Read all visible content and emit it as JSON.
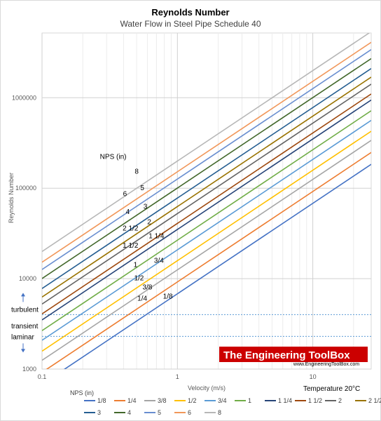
{
  "chart_data": {
    "type": "line",
    "title": "Reynolds Number",
    "subtitle": "Water Flow in Steel Pipe Schedule 40",
    "xlabel": "Velocity (m/s)",
    "ylabel": "Reynolds Number",
    "xscale": "log",
    "yscale": "log",
    "xlim": [
      0.1,
      27
    ],
    "ylim": [
      1000,
      5200000
    ],
    "x_ticks": [
      0.1,
      1,
      10
    ],
    "x_tick_labels": [
      "0.1",
      "1",
      "10"
    ],
    "y_ticks": [
      1000,
      10000,
      100000,
      1000000
    ],
    "y_tick_labels": [
      "1000",
      "10000",
      "100000",
      "1000000"
    ],
    "grid": true,
    "legend_title": "NPS (in)",
    "legend_position": "bottom",
    "label_header": "NPS (in)",
    "temperature_note": "Temperature 20°C",
    "zones": {
      "turbulent": "turbulent",
      "transient": "transient",
      "laminar": "laminar",
      "turbulent_threshold": 4000,
      "laminar_threshold": 2300
    },
    "logo": {
      "title": "The Engineering ToolBox",
      "url": "www.EngineeringToolBox.com",
      "color": "#cc0000"
    },
    "series": [
      {
        "name": "1/8",
        "color": "#4472c4",
        "x": [
          0.1,
          27
        ],
        "y": [
          680,
          183600
        ],
        "label_x": 0.85,
        "label_y": 6000
      },
      {
        "name": "1/4",
        "color": "#ed7d31",
        "x": [
          0.1,
          27
        ],
        "y": [
          920,
          248400
        ],
        "label_x": 0.55,
        "label_y": 5700
      },
      {
        "name": "3/8",
        "color": "#a5a5a5",
        "x": [
          0.1,
          27
        ],
        "y": [
          1250,
          337500
        ],
        "label_x": 0.6,
        "label_y": 7600
      },
      {
        "name": "1/2",
        "color": "#ffc000",
        "x": [
          0.1,
          27
        ],
        "y": [
          1580,
          426600
        ],
        "label_x": 0.52,
        "label_y": 9600
      },
      {
        "name": "3/4",
        "color": "#5b9bd5",
        "x": [
          0.1,
          27
        ],
        "y": [
          2080,
          561600
        ],
        "label_x": 0.73,
        "label_y": 15000
      },
      {
        "name": "1",
        "color": "#70ad47",
        "x": [
          0.1,
          27
        ],
        "y": [
          2660,
          718200
        ],
        "label_x": 0.49,
        "label_y": 13500
      },
      {
        "name": "1 1/4",
        "color": "#264478",
        "x": [
          0.1,
          27
        ],
        "y": [
          3500,
          945000
        ],
        "label_x": 0.7,
        "label_y": 28000
      },
      {
        "name": "1 1/2",
        "color": "#9e480e",
        "x": [
          0.1,
          27
        ],
        "y": [
          4080,
          1101600
        ],
        "label_x": 0.45,
        "label_y": 22000
      },
      {
        "name": "2",
        "color": "#636363",
        "x": [
          0.1,
          27
        ],
        "y": [
          5240,
          1414800
        ],
        "label_x": 0.62,
        "label_y": 40000
      },
      {
        "name": "2 1/2",
        "color": "#997300",
        "x": [
          0.1,
          27
        ],
        "y": [
          6260,
          1690200
        ],
        "label_x": 0.45,
        "label_y": 34000
      },
      {
        "name": "3",
        "color": "#255e91",
        "x": [
          0.1,
          27
        ],
        "y": [
          7780,
          2100600
        ],
        "label_x": 0.58,
        "label_y": 59000
      },
      {
        "name": "4",
        "color": "#43682b",
        "x": [
          0.1,
          27
        ],
        "y": [
          10040,
          2710800
        ],
        "label_x": 0.43,
        "label_y": 52000
      },
      {
        "name": "5",
        "color": "#698ed0",
        "x": [
          0.1,
          27
        ],
        "y": [
          12620,
          3407400
        ],
        "label_x": 0.55,
        "label_y": 95000
      },
      {
        "name": "6",
        "color": "#f1975a",
        "x": [
          0.1,
          27
        ],
        "y": [
          15200,
          4104000
        ],
        "label_x": 0.41,
        "label_y": 82000
      },
      {
        "name": "8",
        "color": "#b7b7b7",
        "x": [
          0.1,
          27
        ],
        "y": [
          19950,
          5386500
        ],
        "label_x": 0.5,
        "label_y": 145000
      }
    ]
  }
}
